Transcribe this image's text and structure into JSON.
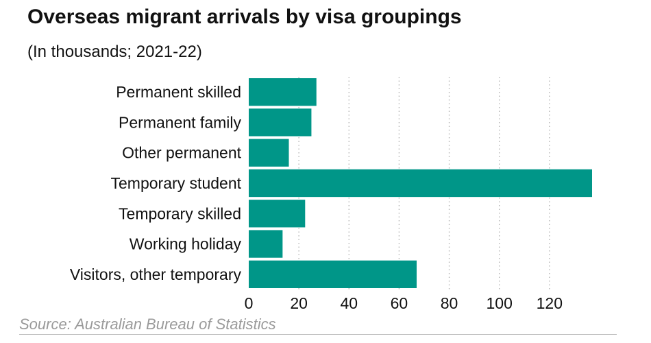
{
  "chart_data": {
    "type": "bar",
    "orientation": "horizontal",
    "title": "Overseas migrant arrivals by visa groupings",
    "subtitle": "(In thousands; 2021-22)",
    "categories": [
      "Permanent skilled",
      "Permanent family",
      "Other permanent",
      "Temporary student",
      "Temporary skilled",
      "Working holiday",
      "Visitors, other temporary"
    ],
    "values": [
      27,
      25,
      16,
      137,
      22.5,
      13.5,
      67
    ],
    "xlim": [
      0,
      137
    ],
    "xticks": [
      0,
      20,
      40,
      60,
      80,
      100,
      120
    ],
    "grid": "vertical dotted",
    "bar_color": "#009688",
    "source": "Source: Australian Bureau of Statistics"
  }
}
